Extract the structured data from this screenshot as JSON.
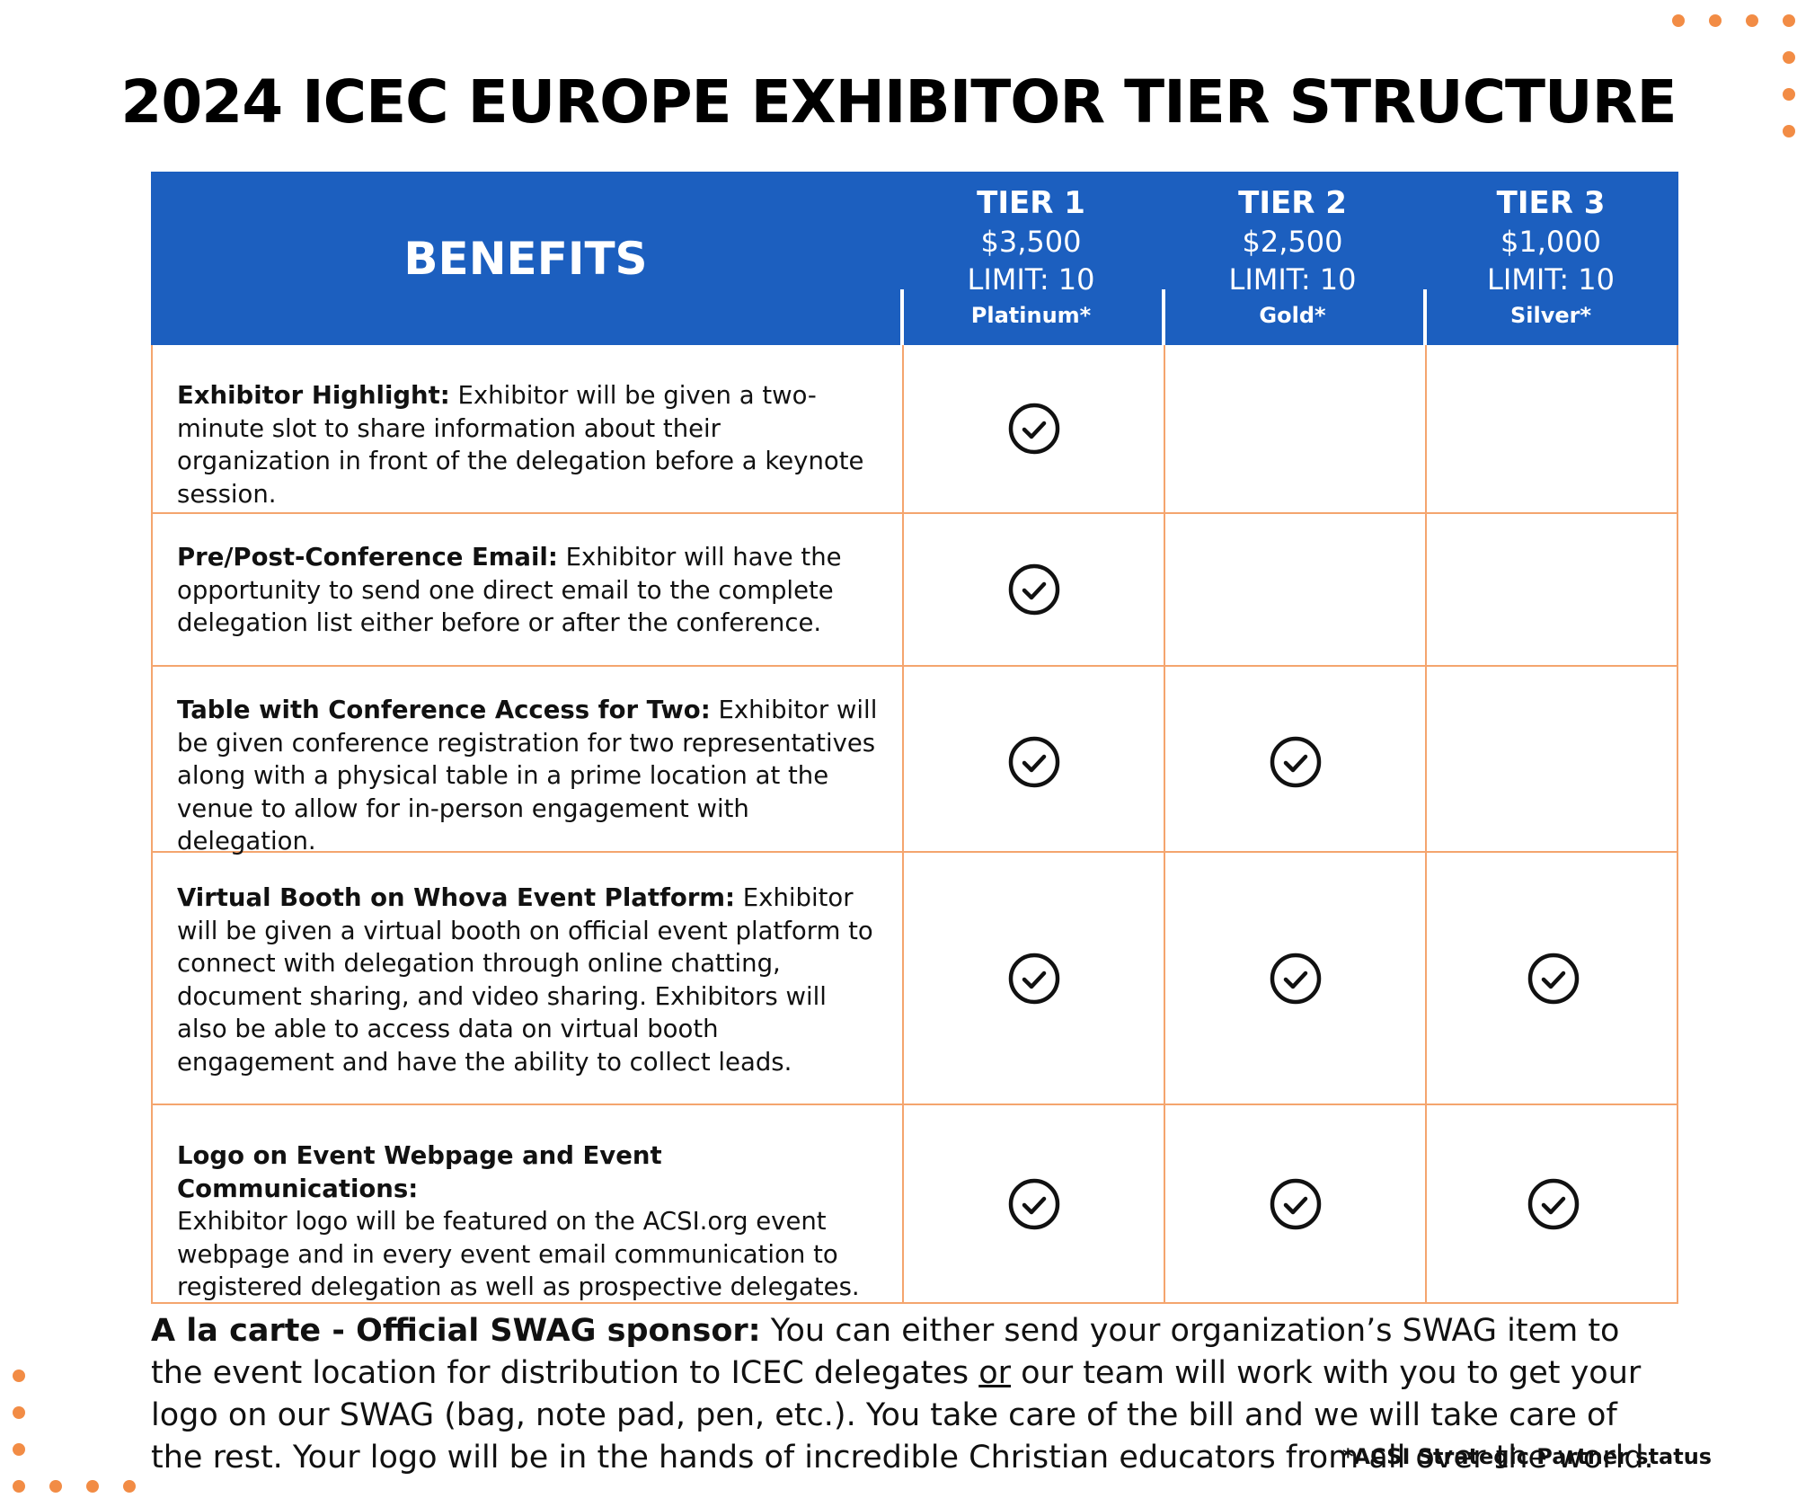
{
  "colors": {
    "header_bg": "#1c5fbf",
    "grid_line": "#f4a56e",
    "accent_dots": "#f28c45"
  },
  "title": "2024 ICEC EUROPE EXHIBITOR TIER STRUCTURE",
  "table": {
    "benefits_header": "BENEFITS",
    "tiers": [
      {
        "name": "TIER 1",
        "price": "$3,500",
        "limit": "LIMIT: 10",
        "level": "Platinum*"
      },
      {
        "name": "TIER 2",
        "price": "$2,500",
        "limit": "LIMIT: 10",
        "level": "Gold*"
      },
      {
        "name": "TIER 3",
        "price": "$1,000",
        "limit": "LIMIT: 10",
        "level": "Silver*"
      }
    ],
    "rows": [
      {
        "title": "Exhibitor Highlight:",
        "text": " Exhibitor will be given a two-minute slot to share information about their organization in front of the delegation before a keynote session.",
        "tiers": [
          true,
          false,
          false
        ]
      },
      {
        "title": "Pre/Post-Conference Email:",
        "text": " Exhibitor will have the opportunity to send one direct email to the complete delegation list either before or after the conference.",
        "tiers": [
          true,
          false,
          false
        ]
      },
      {
        "title": "Table with Conference Access for Two:",
        "text": " Exhibitor will be given conference registration for two representatives along with a physical table in a prime location at the venue to allow for in-person engagement with delegation.",
        "tiers": [
          true,
          true,
          false
        ]
      },
      {
        "title": "Virtual Booth on Whova Event Platform:",
        "text": " Exhibitor will be given a virtual booth on official event platform to connect with delegation through online chatting, document sharing, and video sharing. Exhibitors will also be able to access data on virtual booth engagement and have the ability to collect leads.",
        "tiers": [
          true,
          true,
          true
        ]
      },
      {
        "title": "Logo on Event Webpage and Event Communications:",
        "text": "Exhibitor logo will be featured on the ACSI.org event webpage and in every event email communication to registered delegation as well as prospective delegates.",
        "tiers": [
          true,
          true,
          true
        ]
      }
    ]
  },
  "a_la_carte": {
    "title": "A la carte - Official SWAG sponsor:",
    "text_1": "  You can either send your organization’s SWAG item to the event location for distribution to ICEC delegates ",
    "underlined": "or",
    "text_2": " our team will work with you to get your logo on our SWAG (bag, note pad, pen, etc.). You take care of the bill and we will take care of the rest. Your logo will be in the hands of incredible Christian educators from all over the world."
  },
  "footnote": "*ACSI Strategic Partner status",
  "icons": {
    "check": "check-circle-icon",
    "decor": "dot"
  }
}
